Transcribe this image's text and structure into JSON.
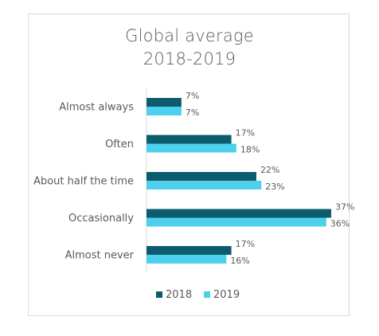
{
  "chart_data": {
    "type": "bar",
    "orientation": "horizontal",
    "title_lines": [
      "Global average",
      "2018-2019"
    ],
    "categories": [
      "Almost always",
      "Often",
      "About half the time",
      "Occasionally",
      "Almost never"
    ],
    "series": [
      {
        "name": "2018",
        "color": "#0d5c6e",
        "values": [
          7,
          17,
          22,
          37,
          17
        ],
        "labels": [
          "7%",
          "17%",
          "22%",
          "37%",
          "17%"
        ]
      },
      {
        "name": "2019",
        "color": "#4dd0ec",
        "values": [
          7,
          18,
          23,
          36,
          16
        ],
        "labels": [
          "7%",
          "18%",
          "23%",
          "36%",
          "16%"
        ]
      }
    ],
    "xlim": [
      0,
      37
    ],
    "grid": false,
    "legend_position": "bottom"
  }
}
